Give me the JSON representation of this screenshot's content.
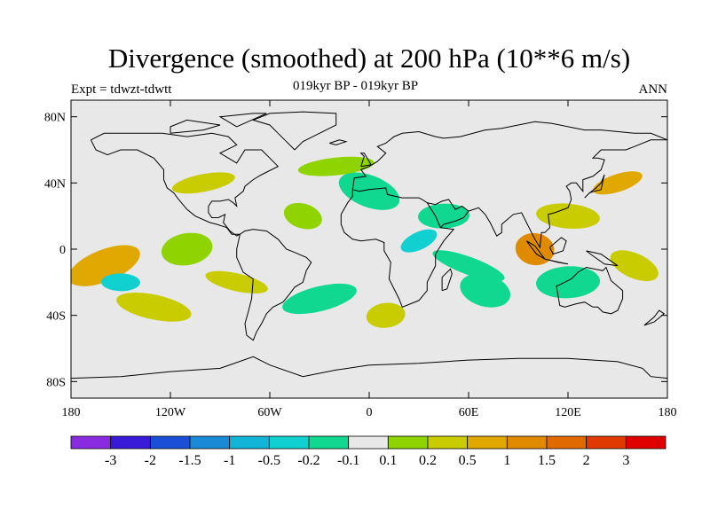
{
  "header": {
    "title": "Divergence (smoothed) at 200 hPa (10**6 m/s)",
    "subtitle": "019kyr BP - 019kyr BP",
    "left_label": "Expt = tdwzt-tdwtt",
    "right_label": "ANN"
  },
  "map": {
    "background_color": "#e8e8e8",
    "x_ticks": [
      {
        "lon": -180,
        "label": "180"
      },
      {
        "lon": -120,
        "label": "120W"
      },
      {
        "lon": -60,
        "label": "60W"
      },
      {
        "lon": 0,
        "label": "0"
      },
      {
        "lon": 60,
        "label": "60E"
      },
      {
        "lon": 120,
        "label": "120E"
      },
      {
        "lon": 180,
        "label": "180"
      }
    ],
    "y_ticks": [
      {
        "lat": 80,
        "label": "80N"
      },
      {
        "lat": 40,
        "label": "40N"
      },
      {
        "lat": 0,
        "label": "0"
      },
      {
        "lat": -40,
        "label": "40S"
      },
      {
        "lat": -80,
        "label": "80S"
      }
    ],
    "lon_range": [
      -180,
      180
    ],
    "lat_range": [
      -90,
      90
    ]
  },
  "chart_data": {
    "type": "heatmap",
    "title": "Divergence (smoothed) at 200 hPa (10**6 m/s)",
    "xlabel": "",
    "ylabel": "",
    "xlim": [
      -180,
      180
    ],
    "ylim": [
      -90,
      90
    ],
    "fields": [
      {
        "lon": 30,
        "lat": 5,
        "value": -0.5
      },
      {
        "lon": 45,
        "lat": 20,
        "value": -0.2
      },
      {
        "lon": 0,
        "lat": 35,
        "value": -0.2
      },
      {
        "lon": -20,
        "lat": 50,
        "value": 0.1
      },
      {
        "lon": -40,
        "lat": 20,
        "value": 0.1
      },
      {
        "lon": -110,
        "lat": 0,
        "value": 0.1
      },
      {
        "lon": -80,
        "lat": -20,
        "value": 0.2
      },
      {
        "lon": -30,
        "lat": -30,
        "value": -0.2
      },
      {
        "lon": 100,
        "lat": 0,
        "value": 1
      },
      {
        "lon": 150,
        "lat": 40,
        "value": 0.5
      },
      {
        "lon": 120,
        "lat": 20,
        "value": 0.2
      },
      {
        "lon": -160,
        "lat": -10,
        "value": 0.5
      },
      {
        "lon": -150,
        "lat": -20,
        "value": -0.5
      },
      {
        "lon": 160,
        "lat": -10,
        "value": 0.2
      },
      {
        "lon": 120,
        "lat": -20,
        "value": -0.2
      },
      {
        "lon": 60,
        "lat": -10,
        "value": -0.2
      },
      {
        "lon": 10,
        "lat": -40,
        "value": 0.2
      },
      {
        "lon": 70,
        "lat": -25,
        "value": -0.2
      },
      {
        "lon": -100,
        "lat": 40,
        "value": 0.2
      },
      {
        "lon": -130,
        "lat": -35,
        "value": 0.2
      }
    ]
  },
  "legend": {
    "colors": [
      "#8a2be2",
      "#3a1ad9",
      "#1a4fd6",
      "#1a8ad6",
      "#12b4d8",
      "#10d0d0",
      "#10d890",
      "#e8e8e8",
      "#8fd400",
      "#c8cc00",
      "#e0a800",
      "#e08a00",
      "#e06a00",
      "#e03a00",
      "#e00000"
    ],
    "labels": [
      "-3",
      "-2",
      "-1.5",
      "-1",
      "-0.5",
      "-0.2",
      "-0.1",
      "0.1",
      "0.2",
      "0.5",
      "1",
      "1.5",
      "2",
      "3"
    ]
  }
}
